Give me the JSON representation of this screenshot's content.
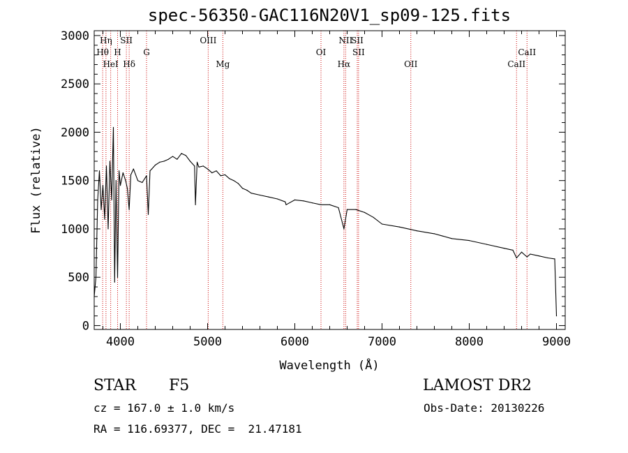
{
  "chart_data": {
    "type": "line",
    "title": "spec-56350-GAC116N20V1_sp09-125.fits",
    "xlabel": "Wavelength (Å)",
    "ylabel": "Flux (relative)",
    "xlim": [
      3700,
      9100
    ],
    "ylim": [
      -40,
      3050
    ],
    "x_ticks": [
      4000,
      5000,
      6000,
      7000,
      8000,
      9000
    ],
    "y_ticks": [
      0,
      500,
      1000,
      1500,
      2000,
      2500,
      3000
    ],
    "series": [
      {
        "x": [
          3700,
          3720,
          3740,
          3760,
          3780,
          3800,
          3820,
          3840,
          3860,
          3880,
          3900,
          3920,
          3934,
          3950,
          3968,
          3985,
          4000,
          4030,
          4060,
          4080,
          4101,
          4120,
          4150,
          4200,
          4250,
          4300,
          4320,
          4340,
          4360,
          4400,
          4450,
          4500,
          4550,
          4600,
          4650,
          4700,
          4750,
          4800,
          4850,
          4861,
          4880,
          4900,
          4950,
          5000,
          5050,
          5100,
          5150,
          5200,
          5250,
          5300,
          5350,
          5400,
          5450,
          5500,
          5600,
          5700,
          5800,
          5890,
          5900,
          6000,
          6100,
          6200,
          6300,
          6400,
          6500,
          6563,
          6600,
          6700,
          6800,
          6900,
          7000,
          7200,
          7400,
          7600,
          7800,
          8000,
          8200,
          8400,
          8500,
          8542,
          8600,
          8662,
          8700,
          8800,
          8900,
          8980,
          9000
        ],
        "y": [
          300,
          500,
          1300,
          1600,
          1200,
          1450,
          1100,
          1650,
          1000,
          1700,
          1300,
          2050,
          450,
          1500,
          500,
          1600,
          1450,
          1580,
          1500,
          1420,
          1200,
          1560,
          1620,
          1500,
          1480,
          1550,
          1150,
          1600,
          1620,
          1660,
          1690,
          1700,
          1720,
          1750,
          1720,
          1780,
          1760,
          1700,
          1650,
          1250,
          1690,
          1640,
          1650,
          1620,
          1580,
          1600,
          1550,
          1560,
          1520,
          1500,
          1470,
          1420,
          1400,
          1370,
          1350,
          1330,
          1310,
          1280,
          1250,
          1300,
          1290,
          1270,
          1250,
          1250,
          1220,
          1000,
          1200,
          1200,
          1170,
          1120,
          1050,
          1020,
          980,
          950,
          900,
          880,
          840,
          800,
          780,
          700,
          760,
          710,
          740,
          720,
          700,
          690,
          100
        ]
      }
    ],
    "annotations": [
      {
        "label": "Hη",
        "x": 3835,
        "row": 1
      },
      {
        "label": "Hθ",
        "x": 3797,
        "row": 2
      },
      {
        "label": "HeI",
        "x": 3889,
        "row": 3
      },
      {
        "label": "SII",
        "x": 4069,
        "row": 1
      },
      {
        "label": "H",
        "x": 3968,
        "row": 2
      },
      {
        "label": "Hδ",
        "x": 4101,
        "row": 3
      },
      {
        "label": "G",
        "x": 4300,
        "row": 2
      },
      {
        "label": "OIII",
        "x": 5007,
        "row": 1
      },
      {
        "label": "Mg",
        "x": 5175,
        "row": 3
      },
      {
        "label": "OI",
        "x": 6300,
        "row": 2
      },
      {
        "label": "NII",
        "x": 6583,
        "row": 1
      },
      {
        "label": "SII",
        "x": 6716,
        "row": 1
      },
      {
        "label": "Hα",
        "x": 6563,
        "row": 3
      },
      {
        "label": "SII",
        "x": 6731,
        "row": 2
      },
      {
        "label": "OII",
        "x": 7330,
        "row": 3
      },
      {
        "label": "CaII",
        "x": 8662,
        "row": 2
      },
      {
        "label": "CaII",
        "x": 8542,
        "row": 3
      }
    ],
    "line_marks_x": [
      3797,
      3835,
      3889,
      3968,
      4069,
      4101,
      4300,
      5007,
      5175,
      6300,
      6563,
      6583,
      6716,
      6731,
      7330,
      8542,
      8662
    ],
    "grid": false,
    "line_color": "#000000",
    "mark_color": "#cc0000"
  },
  "info": {
    "class_label": "STAR",
    "subclass": "F5",
    "survey": "LAMOST DR2",
    "cz": "cz = 167.0 ± 1.0 km/s",
    "obs_date": "Obs-Date: 20130226",
    "coords": "RA = 116.69377, DEC =  21.47181"
  }
}
